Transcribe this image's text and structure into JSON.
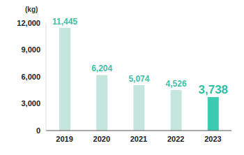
{
  "chart_data": {
    "type": "bar",
    "y_label": "(kg)",
    "categories": [
      "2019",
      "2020",
      "2021",
      "2022",
      "2023"
    ],
    "values": [
      11445,
      6204,
      5074,
      4526,
      3738
    ],
    "value_labels": [
      "11,445",
      "6,204",
      "5,074",
      "4,526",
      "3,738"
    ],
    "colors": [
      "#c4e6df",
      "#c4e6df",
      "#c4e6df",
      "#c4e6df",
      "#3ccbb0"
    ],
    "ylim": [
      0,
      12000
    ],
    "yticks": [
      0,
      {
        "value": 3000,
        "label": "3,000"
      },
      {
        "value": 6000,
        "label": "6,000"
      },
      {
        "value": 9000,
        "label": "9,000"
      },
      {
        "value": 12000,
        "label": "12,000"
      }
    ],
    "data_labels": true,
    "grid": false
  }
}
